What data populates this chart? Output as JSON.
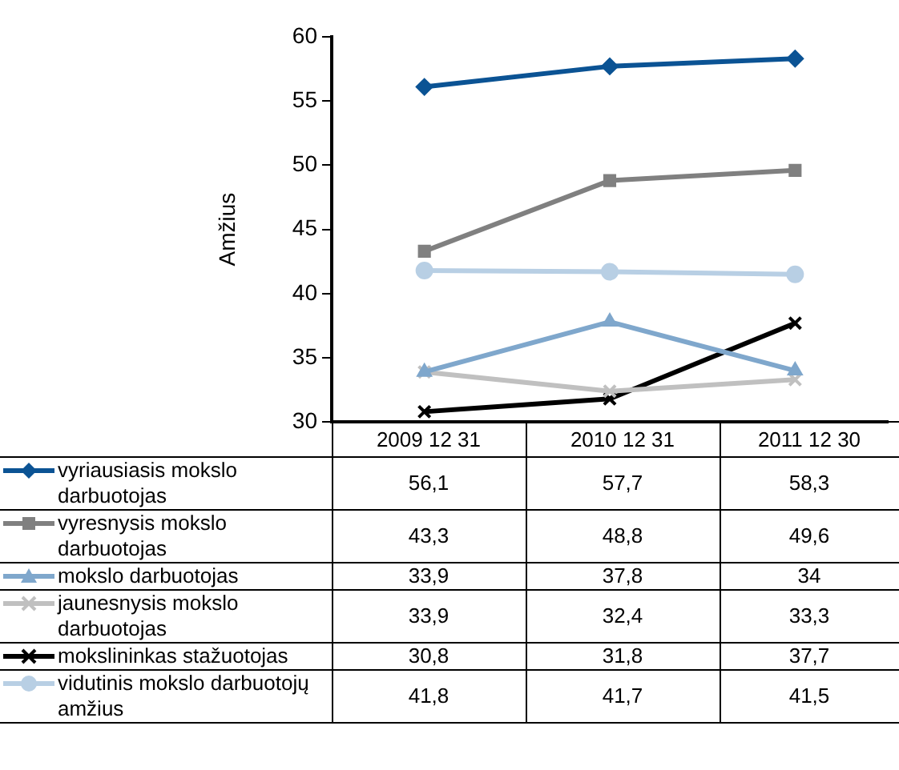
{
  "chart_data": {
    "type": "line",
    "ylabel": "Amžius",
    "categories": [
      "2009 12 31",
      "2010 12 31",
      "2011 12 30"
    ],
    "ylim": [
      30,
      60
    ],
    "yticks": [
      30,
      35,
      40,
      45,
      50,
      55,
      60
    ],
    "grid": false,
    "legend": "bottom",
    "line_style": "solid",
    "series": [
      {
        "name": "vyriausiasis mokslo darbuotojas",
        "color": "#0b5394",
        "marker": "diamond",
        "values": [
          56.1,
          57.7,
          58.3
        ],
        "value_labels": [
          "56,1",
          "57,7",
          "58,3"
        ]
      },
      {
        "name": "vyresnysis mokslo darbuotojas",
        "color": "#808080",
        "marker": "square",
        "values": [
          43.3,
          48.8,
          49.6
        ],
        "value_labels": [
          "43,3",
          "48,8",
          "49,6"
        ]
      },
      {
        "name": "mokslo darbuotojas",
        "color": "#7fa7cc",
        "marker": "triangle",
        "values": [
          33.9,
          37.8,
          34
        ],
        "value_labels": [
          "33,9",
          "37,8",
          "34"
        ]
      },
      {
        "name": "jaunesnysis mokslo darbuotojas",
        "color": "#c0c0c0",
        "marker": "cross",
        "values": [
          33.9,
          32.4,
          33.3
        ],
        "value_labels": [
          "33,9",
          "32,4",
          "33,3"
        ]
      },
      {
        "name": "mokslininkas stažuotojas",
        "color": "#000000",
        "marker": "cross",
        "values": [
          30.8,
          31.8,
          37.7
        ],
        "value_labels": [
          "30,8",
          "31,8",
          "37,7"
        ]
      },
      {
        "name": "vidutinis mokslo darbuotojų amžius",
        "color": "#b8cfe4",
        "marker": "circle",
        "values": [
          41.8,
          41.7,
          41.5
        ],
        "value_labels": [
          "41,8",
          "41,7",
          "41,5"
        ]
      }
    ]
  }
}
